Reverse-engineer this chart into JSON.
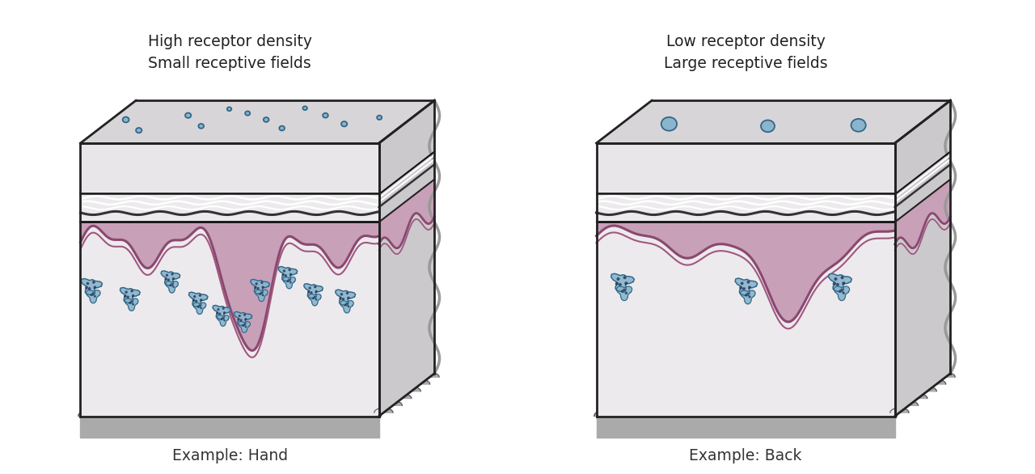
{
  "title_left_line1": "High receptor density",
  "title_left_line2": "Small receptive fields",
  "title_right_line1": "Low receptor density",
  "title_right_line2": "Large receptive fields",
  "label_left": "Example: Hand",
  "label_right": "Example: Back",
  "bg_color": "#ffffff",
  "skin_light_color": "#e8e6e8",
  "skin_lower_color": "#edeaed",
  "dermis_fill": "#c8a0b8",
  "dermis_outline1": "#8a4870",
  "dermis_outline2": "#a05880",
  "box_outline": "#222222",
  "top_face_color": "#d8d5d8",
  "right_face_color": "#ccc9cc",
  "receptor_fill": "#8ab5cc",
  "receptor_edge": "#336688",
  "nerve_fill": "#88b5cc",
  "nerve_edge": "#336688",
  "bump_color": "#aaaaaa",
  "bump_edge": "#555555",
  "layer_white": "#ffffff",
  "layer_dark": "#333333",
  "right_wave_gray": "#999999",
  "title_color": "#222222",
  "label_color": "#333333"
}
